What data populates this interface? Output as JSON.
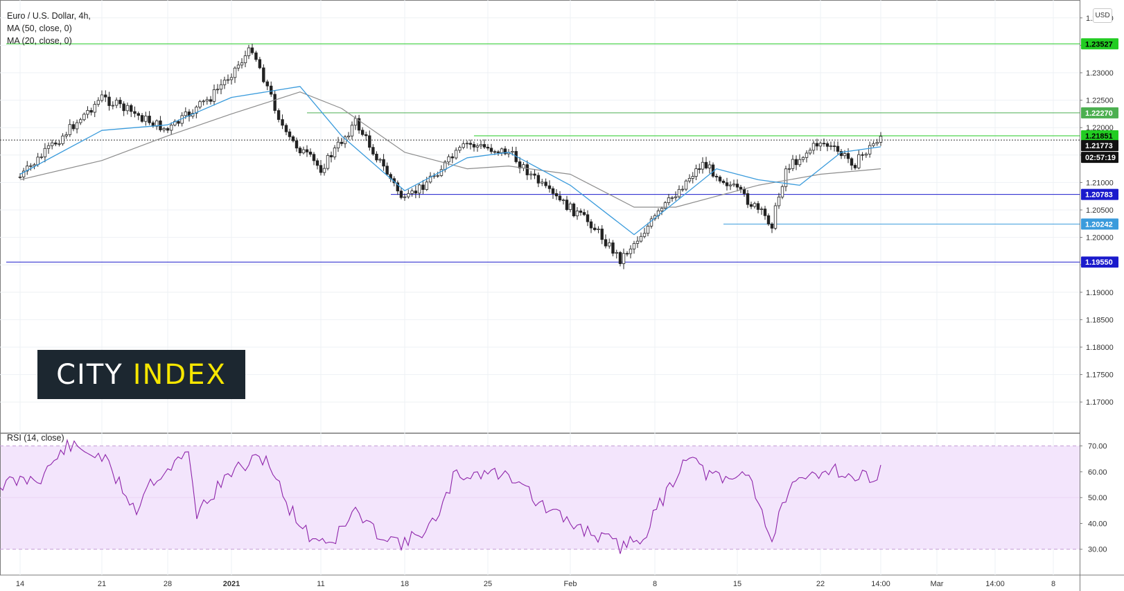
{
  "legend": {
    "title": "Euro / U.S. Dollar, 4h,",
    "ma1": "MA (50, close, 0)",
    "ma2": "MA (20, close, 0)"
  },
  "logo": {
    "part1": "CITY",
    "part2": "INDEX"
  },
  "currency_badge": "USD",
  "rsi_label": "RSI (14, close)",
  "colors": {
    "candle": "#222222",
    "ma20": "#3a9bdc",
    "ma50": "#8c8c8c",
    "resistance_green": "#22c922",
    "support_blue": "#1a1acc",
    "rsi_line": "#8e24aa",
    "rsi_band": "#f3e5fc"
  },
  "chart_data": [
    {
      "type": "candlestick",
      "title": "Euro / U.S. Dollar, 4h,",
      "ylim": [
        1.1675,
        1.2425
      ],
      "y_ticks": [
        "1.24000",
        "1.23500",
        "1.23000",
        "1.22500",
        "1.22000",
        "1.21500",
        "1.21000",
        "1.20500",
        "1.20000",
        "1.19500",
        "1.19000",
        "1.18500",
        "1.18000",
        "1.17500",
        "1.17000"
      ],
      "x_ticks": [
        "14",
        "21",
        "28",
        "2021",
        "11",
        "18",
        "25",
        "Feb",
        "8",
        "15",
        "22",
        "14:00",
        "Mar",
        "14:00",
        "8"
      ],
      "indicators": [
        "MA (50, close, 0)",
        "MA (20, close, 0)"
      ],
      "price_tags": [
        {
          "label": "1.23527",
          "value": 1.23527,
          "color": "#22cc22"
        },
        {
          "label": "1.22270",
          "value": 1.2227,
          "color": "#4caf50"
        },
        {
          "label": "1.21851",
          "value": 1.21851,
          "color": "#22cc22"
        },
        {
          "label": "1.21773",
          "value": 1.21773,
          "color": "#111111"
        },
        {
          "label": "02:57:19",
          "value": null,
          "color": "#111111"
        },
        {
          "label": "1.20783",
          "value": 1.20783,
          "color": "#1a1acc"
        },
        {
          "label": "1.20242",
          "value": 1.20242,
          "color": "#3a9bdc"
        },
        {
          "label": "1.19550",
          "value": 1.1955,
          "color": "#1a1acc"
        }
      ],
      "hlines": [
        {
          "value": 1.23527,
          "from": "14",
          "color": "#22c922"
        },
        {
          "value": 1.2227,
          "from": "11",
          "color": "#4caf50"
        },
        {
          "value": 1.21851,
          "from": "25",
          "color": "#22c922"
        },
        {
          "value": 1.21773,
          "from": "14",
          "style": "dotted",
          "color": "#333333"
        },
        {
          "value": 1.20783,
          "from": "18",
          "color": "#1a1acc"
        },
        {
          "value": 1.20242,
          "from": "15",
          "color": "#3a9bdc"
        },
        {
          "value": 1.1955,
          "from": "14",
          "color": "#1a1acc"
        }
      ],
      "close_path": [
        [
          "14",
          1.211
        ],
        [
          "21",
          1.2255
        ],
        [
          "28",
          1.2195
        ],
        [
          "2021",
          1.2255
        ],
        [
          "2021",
          1.2345
        ],
        [
          "11",
          1.2185
        ],
        [
          "11",
          1.2125
        ],
        [
          "11",
          1.221
        ],
        [
          "18",
          1.2065
        ],
        [
          "25",
          1.217
        ],
        [
          "25",
          1.2155
        ],
        [
          "Feb",
          1.208
        ],
        [
          "Feb",
          1.2025
        ],
        [
          "8",
          1.196
        ],
        [
          "8",
          1.2035
        ],
        [
          "8",
          1.211
        ],
        [
          "15",
          1.2135
        ],
        [
          "15",
          1.2085
        ],
        [
          "15",
          1.2025
        ],
        [
          "22",
          1.2125
        ],
        [
          "22",
          1.2175
        ],
        [
          "22",
          1.2135
        ],
        [
          "14:00",
          1.2185
        ]
      ],
      "ma20_path": [
        [
          "14",
          1.2115
        ],
        [
          "21",
          1.2195
        ],
        [
          "28",
          1.2205
        ],
        [
          "2021",
          1.2255
        ],
        [
          "11",
          1.2275
        ],
        [
          "11",
          1.2185
        ],
        [
          "18",
          1.2085
        ],
        [
          "25",
          1.2145
        ],
        [
          "25",
          1.2155
        ],
        [
          "Feb",
          1.2095
        ],
        [
          "8",
          1.2005
        ],
        [
          "8",
          1.2065
        ],
        [
          "15",
          1.2125
        ],
        [
          "15",
          1.2105
        ],
        [
          "22",
          1.2095
        ],
        [
          "22",
          1.2155
        ],
        [
          "14:00",
          1.2165
        ]
      ],
      "ma50_path": [
        [
          "14",
          1.2105
        ],
        [
          "21",
          1.214
        ],
        [
          "28",
          1.2185
        ],
        [
          "2021",
          1.2225
        ],
        [
          "11",
          1.2265
        ],
        [
          "11",
          1.2235
        ],
        [
          "18",
          1.2155
        ],
        [
          "25",
          1.2125
        ],
        [
          "25",
          1.213
        ],
        [
          "Feb",
          1.2115
        ],
        [
          "8",
          1.2055
        ],
        [
          "8",
          1.2055
        ],
        [
          "15",
          1.2075
        ],
        [
          "15",
          1.2095
        ],
        [
          "22",
          1.2115
        ],
        [
          "14:00",
          1.2125
        ]
      ]
    },
    {
      "type": "line",
      "title": "RSI (14, close)",
      "ylim": [
        20,
        75
      ],
      "y_ticks": [
        "70.00",
        "60.00",
        "50.00",
        "40.00",
        "30.00"
      ],
      "band": [
        30,
        70
      ],
      "series": [
        {
          "name": "RSI (14, close)",
          "path": [
            [
              "14",
              55
            ],
            [
              "14",
              58
            ],
            [
              "21",
              70
            ],
            [
              "21",
              66
            ],
            [
              "21",
              45
            ],
            [
              "28",
              55
            ],
            [
              "28",
              67
            ],
            [
              "2021",
              44
            ],
            [
              "2021",
              60
            ],
            [
              "2021",
              66
            ],
            [
              "11",
              48
            ],
            [
              "11",
              35
            ],
            [
              "11",
              33
            ],
            [
              "11",
              45
            ],
            [
              "18",
              38
            ],
            [
              "18",
              32
            ],
            [
              "18",
              42
            ],
            [
              "25",
              58
            ],
            [
              "25",
              60
            ],
            [
              "25",
              57
            ],
            [
              "Feb",
              48
            ],
            [
              "Feb",
              40
            ],
            [
              "Feb",
              34
            ],
            [
              "8",
              31
            ],
            [
              "8",
              35
            ],
            [
              "8",
              52
            ],
            [
              "8",
              68
            ],
            [
              "15",
              60
            ],
            [
              "15",
              56
            ],
            [
              "15",
              60
            ],
            [
              "15",
              33
            ],
            [
              "22",
              51
            ],
            [
              "22",
              58
            ],
            [
              "22",
              62
            ],
            [
              "22",
              57
            ],
            [
              "14:00",
              60
            ]
          ]
        }
      ]
    }
  ]
}
